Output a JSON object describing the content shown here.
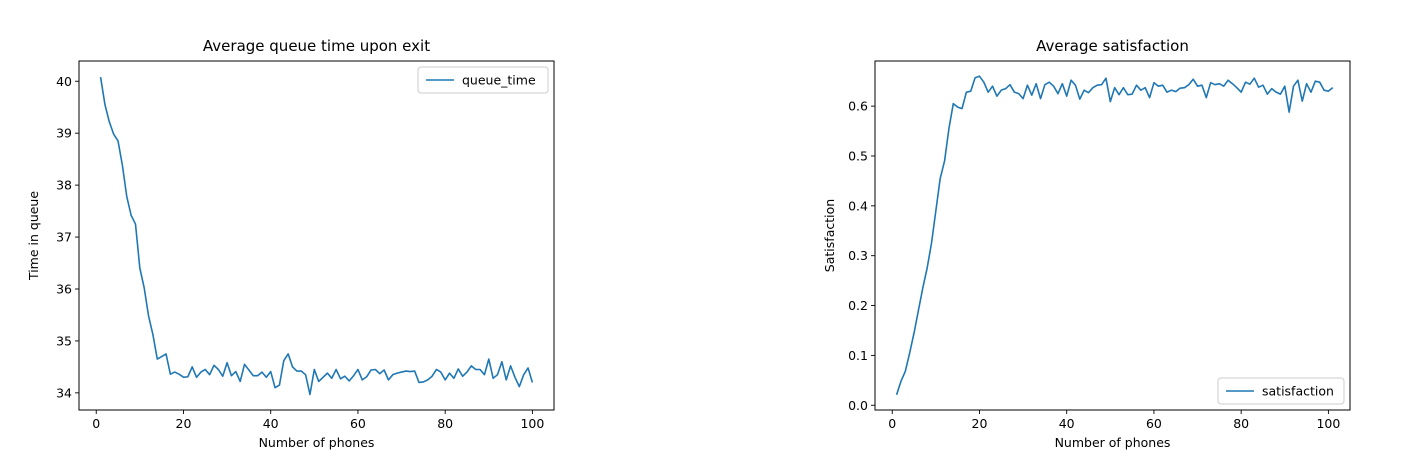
{
  "chart_data": [
    {
      "type": "line",
      "title": "Average queue time upon exit",
      "xlabel": "Number of phones",
      "ylabel": "Time in queue",
      "xlim": [
        -3.95,
        104.95
      ],
      "ylim": [
        33.67,
        40.39
      ],
      "xticks": [
        0,
        20,
        40,
        60,
        80,
        100
      ],
      "yticks": [
        34,
        35,
        36,
        37,
        38,
        39,
        40
      ],
      "legend_position": "upper-right",
      "grid": false,
      "color": "#1f77b4",
      "series": [
        {
          "name": "queue_time",
          "x_start": 1,
          "x_step": 1,
          "values": [
            40.08,
            39.55,
            39.22,
            38.98,
            38.85,
            38.38,
            37.78,
            37.42,
            37.25,
            36.4,
            36.02,
            35.48,
            35.12,
            34.65,
            34.7,
            34.75,
            34.36,
            34.4,
            34.36,
            34.3,
            34.31,
            34.5,
            34.3,
            34.4,
            34.45,
            34.35,
            34.53,
            34.45,
            34.32,
            34.58,
            34.33,
            34.41,
            34.22,
            34.55,
            34.44,
            34.33,
            34.33,
            34.4,
            34.3,
            34.41,
            34.1,
            34.15,
            34.62,
            34.75,
            34.5,
            34.42,
            34.42,
            34.35,
            33.97,
            34.45,
            34.22,
            34.3,
            34.38,
            34.28,
            34.45,
            34.27,
            34.32,
            34.23,
            34.33,
            34.45,
            34.25,
            34.31,
            34.44,
            34.45,
            34.37,
            34.44,
            34.25,
            34.35,
            34.38,
            34.4,
            34.42,
            34.41,
            34.42,
            34.2,
            34.21,
            34.25,
            34.32,
            34.45,
            34.4,
            34.25,
            34.38,
            34.28,
            34.46,
            34.32,
            34.4,
            34.52,
            34.45,
            34.45,
            34.35,
            34.65,
            34.28,
            34.35,
            34.6,
            34.25,
            34.52,
            34.3,
            34.12,
            34.35,
            34.48,
            34.2
          ]
        }
      ]
    },
    {
      "type": "line",
      "title": "Average satisfaction",
      "xlabel": "Number of phones",
      "ylabel": "Satisfaction",
      "xlim": [
        -3.95,
        104.95
      ],
      "ylim": [
        -0.0095,
        0.6905
      ],
      "xticks": [
        0,
        20,
        40,
        60,
        80,
        100
      ],
      "yticks": [
        0.0,
        0.1,
        0.2,
        0.3,
        0.4,
        0.5,
        0.6
      ],
      "ytick_labels": [
        "0.0",
        "0.1",
        "0.2",
        "0.3",
        "0.4",
        "0.5",
        "0.6"
      ],
      "legend_position": "lower-right",
      "grid": false,
      "color": "#1f77b4",
      "series": [
        {
          "name": "satisfaction",
          "x_start": 1,
          "x_step": 1,
          "values": [
            0.021,
            0.048,
            0.068,
            0.105,
            0.145,
            0.19,
            0.235,
            0.275,
            0.325,
            0.39,
            0.455,
            0.49,
            0.555,
            0.605,
            0.598,
            0.595,
            0.628,
            0.63,
            0.657,
            0.66,
            0.648,
            0.628,
            0.64,
            0.62,
            0.632,
            0.635,
            0.643,
            0.628,
            0.625,
            0.615,
            0.642,
            0.622,
            0.645,
            0.615,
            0.643,
            0.648,
            0.64,
            0.625,
            0.645,
            0.62,
            0.652,
            0.642,
            0.614,
            0.632,
            0.627,
            0.637,
            0.642,
            0.643,
            0.656,
            0.609,
            0.637,
            0.623,
            0.637,
            0.623,
            0.624,
            0.642,
            0.632,
            0.637,
            0.617,
            0.647,
            0.64,
            0.642,
            0.628,
            0.632,
            0.629,
            0.636,
            0.637,
            0.643,
            0.654,
            0.64,
            0.642,
            0.617,
            0.647,
            0.643,
            0.645,
            0.64,
            0.652,
            0.645,
            0.637,
            0.628,
            0.648,
            0.644,
            0.656,
            0.638,
            0.642,
            0.624,
            0.635,
            0.628,
            0.624,
            0.64,
            0.588,
            0.64,
            0.652,
            0.61,
            0.645,
            0.628,
            0.65,
            0.648,
            0.632,
            0.63,
            0.637
          ]
        }
      ]
    }
  ]
}
